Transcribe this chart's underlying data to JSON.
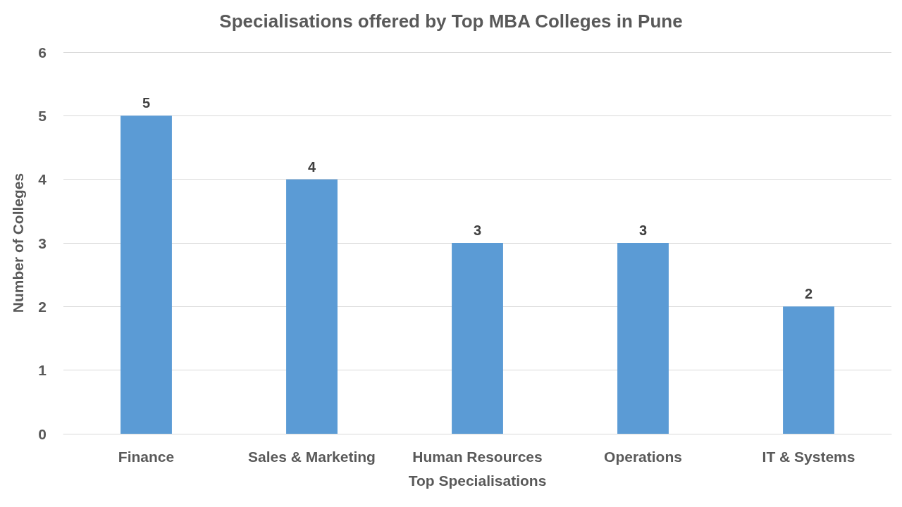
{
  "chart_data": {
    "type": "bar",
    "title": "Specialisations offered by Top MBA Colleges in Pune",
    "xlabel": "Top Specialisations",
    "ylabel": "Number of Colleges",
    "categories": [
      "Finance",
      "Sales & Marketing",
      "Human Resources",
      "Operations",
      "IT & Systems"
    ],
    "values": [
      5,
      4,
      3,
      3,
      2
    ],
    "color": "#5b9bd5",
    "ylim": [
      0,
      6
    ],
    "yticks": [
      0,
      1,
      2,
      3,
      4,
      5,
      6
    ],
    "grid": true,
    "data_labels": true
  }
}
